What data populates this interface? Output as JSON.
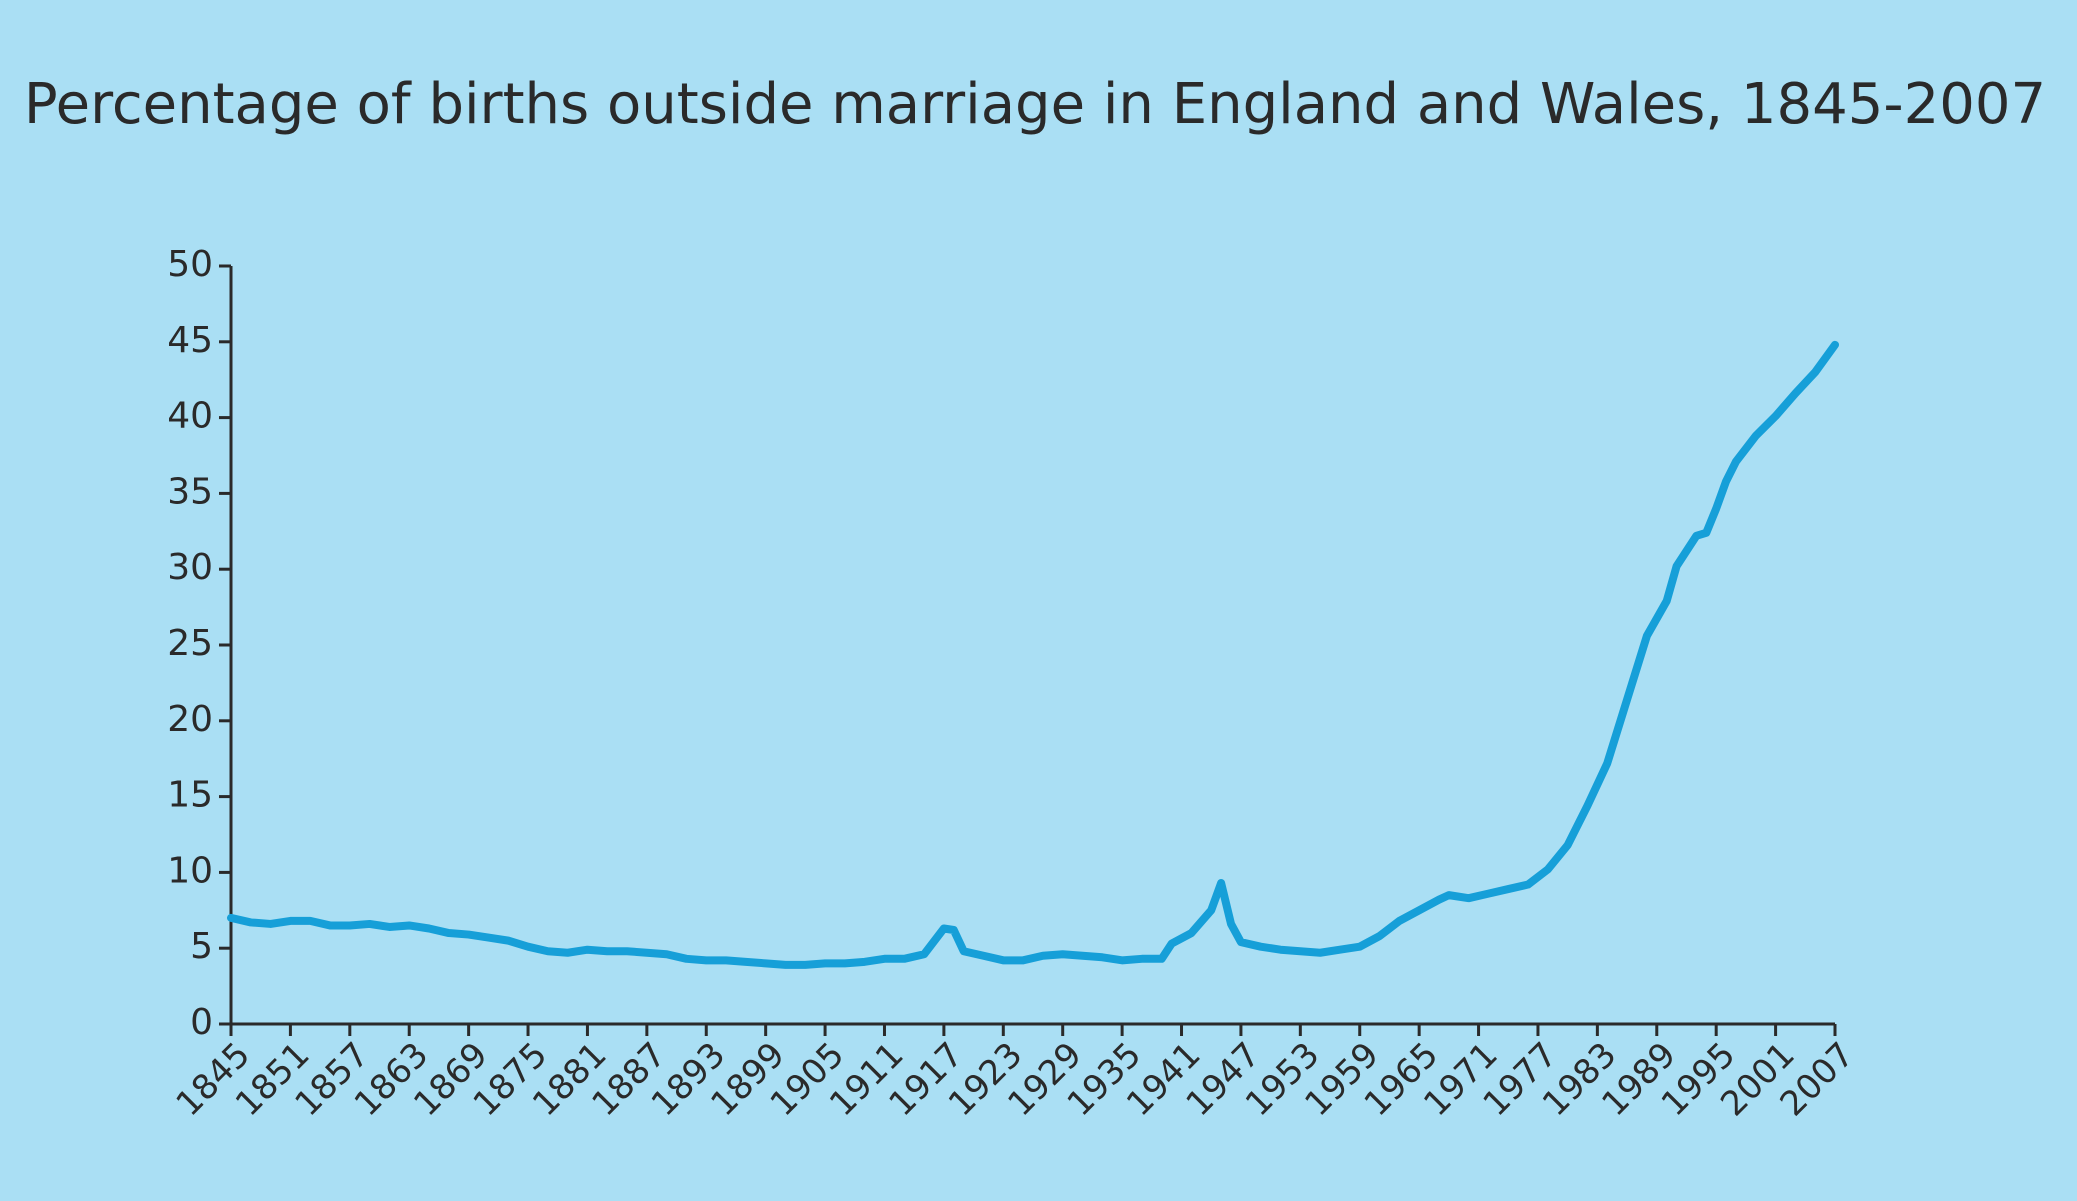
{
  "chart_data": {
    "type": "line",
    "title": "Percentage of births outside marriage in England and Wales, 1845-2007",
    "x": [
      1845,
      1847,
      1849,
      1851,
      1853,
      1855,
      1857,
      1859,
      1861,
      1863,
      1865,
      1867,
      1869,
      1871,
      1873,
      1875,
      1877,
      1879,
      1881,
      1883,
      1885,
      1887,
      1889,
      1891,
      1893,
      1895,
      1897,
      1899,
      1901,
      1903,
      1905,
      1907,
      1909,
      1911,
      1913,
      1915,
      1917,
      1918,
      1919,
      1921,
      1923,
      1925,
      1927,
      1929,
      1931,
      1933,
      1935,
      1937,
      1939,
      1940,
      1942,
      1944,
      1945,
      1946,
      1947,
      1949,
      1951,
      1953,
      1955,
      1957,
      1959,
      1961,
      1963,
      1965,
      1967,
      1968,
      1970,
      1972,
      1974,
      1976,
      1978,
      1980,
      1982,
      1984,
      1986,
      1988,
      1990,
      1991,
      1993,
      1994,
      1995,
      1996,
      1997,
      1999,
      2001,
      2003,
      2005,
      2007
    ],
    "series": [
      {
        "name": "Births outside marriage",
        "color": "#169fd8",
        "values": [
          7.0,
          6.7,
          6.6,
          6.8,
          6.8,
          6.5,
          6.5,
          6.6,
          6.4,
          6.5,
          6.3,
          6.0,
          5.9,
          5.7,
          5.5,
          5.1,
          4.8,
          4.7,
          4.9,
          4.8,
          4.8,
          4.7,
          4.6,
          4.3,
          4.2,
          4.2,
          4.1,
          4.0,
          3.9,
          3.9,
          4.0,
          4.0,
          4.1,
          4.3,
          4.3,
          4.6,
          6.3,
          6.2,
          4.8,
          4.5,
          4.2,
          4.2,
          4.5,
          4.6,
          4.5,
          4.4,
          4.2,
          4.3,
          4.3,
          5.3,
          6.0,
          7.5,
          9.3,
          6.6,
          5.4,
          5.1,
          4.9,
          4.8,
          4.7,
          4.9,
          5.1,
          5.8,
          6.8,
          7.5,
          8.2,
          8.5,
          8.3,
          8.6,
          8.9,
          9.2,
          10.2,
          11.8,
          14.4,
          17.2,
          21.4,
          25.6,
          27.9,
          30.2,
          32.2,
          32.4,
          34.0,
          35.8,
          37.1,
          38.8,
          40.1,
          41.6,
          43.0,
          44.8
        ]
      }
    ],
    "xlim": [
      1845,
      2007
    ],
    "xticks": [
      1845,
      1851,
      1857,
      1863,
      1869,
      1875,
      1881,
      1887,
      1893,
      1899,
      1905,
      1911,
      1917,
      1923,
      1929,
      1935,
      1941,
      1947,
      1953,
      1959,
      1965,
      1971,
      1977,
      1983,
      1989,
      1995,
      2001,
      2007
    ],
    "ylim": [
      0,
      50
    ],
    "yticks": [
      0,
      5,
      10,
      15,
      20,
      25,
      30,
      35,
      40,
      45,
      50
    ],
    "grid": false
  }
}
